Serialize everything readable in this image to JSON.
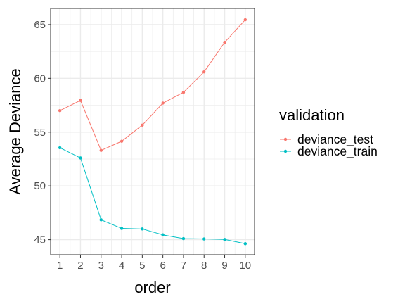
{
  "chart_data": {
    "type": "line",
    "title": "",
    "xlabel": "order",
    "ylabel": "Average Deviance",
    "x": [
      1,
      2,
      3,
      4,
      5,
      6,
      7,
      8,
      9,
      10
    ],
    "xlim": [
      0.55,
      10.45
    ],
    "ylim": [
      43.6,
      66.5
    ],
    "yticks": [
      45,
      50,
      55,
      60,
      65
    ],
    "grid": true,
    "legend": {
      "title": "validation",
      "placement": "right"
    },
    "series": [
      {
        "name": "deviance_test",
        "color": "#F8766D",
        "values": [
          57.0,
          57.95,
          53.3,
          54.15,
          55.65,
          57.7,
          58.7,
          60.6,
          63.35,
          65.45
        ]
      },
      {
        "name": "deviance_train",
        "color": "#00BFC4",
        "values": [
          53.55,
          52.6,
          46.85,
          46.05,
          46.0,
          45.45,
          45.1,
          45.07,
          45.02,
          44.63
        ]
      }
    ]
  }
}
